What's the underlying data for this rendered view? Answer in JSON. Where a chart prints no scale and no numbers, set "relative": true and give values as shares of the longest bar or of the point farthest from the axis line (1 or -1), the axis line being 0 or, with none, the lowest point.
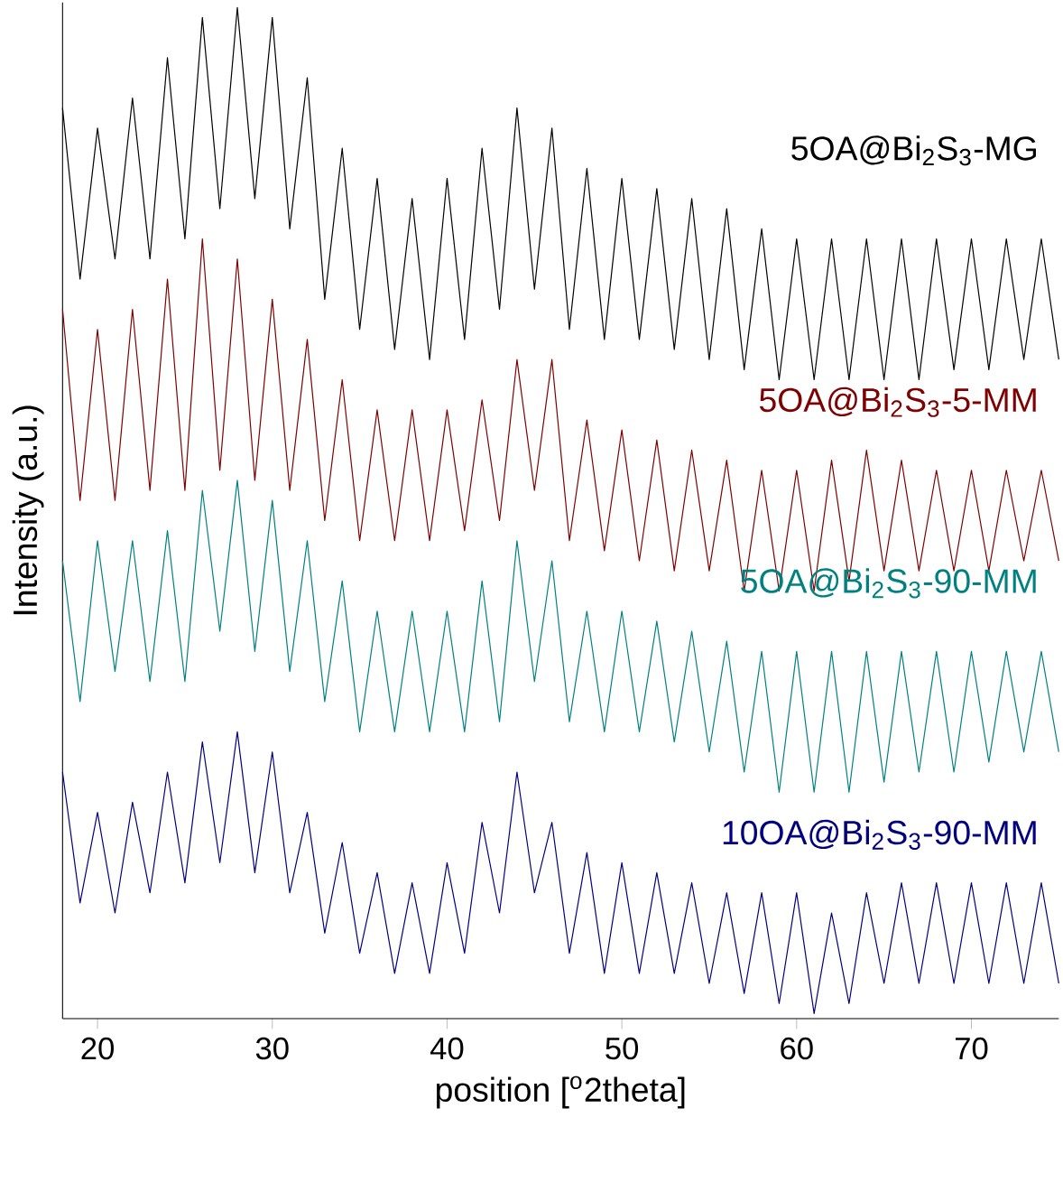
{
  "chart_data": {
    "type": "line",
    "relative": true,
    "xlabel": "position [$^{o}$2theta]",
    "ylabel": "Intensity (a.u.)",
    "xlim": [
      18,
      75
    ],
    "xticks": [
      20,
      30,
      40,
      50,
      60,
      70
    ],
    "marker": "none",
    "line_style": "solid",
    "x": [
      18,
      19,
      20,
      21,
      22,
      23,
      24,
      25,
      26,
      27,
      28,
      29,
      30,
      31,
      32,
      33,
      34,
      35,
      36,
      37,
      38,
      39,
      40,
      41,
      42,
      43,
      44,
      45,
      46,
      47,
      48,
      49,
      50,
      51,
      52,
      53,
      54,
      55,
      56,
      57,
      58,
      59,
      60,
      61,
      62,
      63,
      64,
      65,
      66,
      67,
      68,
      69,
      70,
      71,
      72,
      73,
      74,
      75
    ],
    "series": [
      {
        "name": "5OA@Bi$_{2}$S$_{3}$-MG",
        "color": "#000000",
        "values": [
          0.9,
          0.73,
          0.88,
          0.75,
          0.91,
          0.75,
          0.95,
          0.77,
          0.99,
          0.8,
          1.0,
          0.81,
          0.99,
          0.78,
          0.93,
          0.71,
          0.86,
          0.68,
          0.83,
          0.66,
          0.81,
          0.65,
          0.83,
          0.67,
          0.86,
          0.7,
          0.9,
          0.72,
          0.88,
          0.68,
          0.84,
          0.67,
          0.83,
          0.67,
          0.82,
          0.66,
          0.81,
          0.65,
          0.8,
          0.64,
          0.78,
          0.63,
          0.77,
          0.63,
          0.77,
          0.63,
          0.77,
          0.63,
          0.77,
          0.63,
          0.77,
          0.64,
          0.77,
          0.64,
          0.77,
          0.65,
          0.77,
          0.65
        ]
      },
      {
        "name": "5OA@Bi$_{2}$S$_{3}$-5-MM",
        "color": "#7f0000",
        "values": [
          0.7,
          0.51,
          0.68,
          0.51,
          0.7,
          0.52,
          0.73,
          0.52,
          0.77,
          0.54,
          0.75,
          0.53,
          0.71,
          0.52,
          0.67,
          0.49,
          0.63,
          0.47,
          0.6,
          0.47,
          0.6,
          0.47,
          0.6,
          0.48,
          0.61,
          0.49,
          0.65,
          0.52,
          0.65,
          0.47,
          0.59,
          0.46,
          0.58,
          0.45,
          0.57,
          0.44,
          0.56,
          0.44,
          0.55,
          0.42,
          0.54,
          0.42,
          0.54,
          0.42,
          0.55,
          0.43,
          0.56,
          0.44,
          0.55,
          0.44,
          0.54,
          0.44,
          0.54,
          0.44,
          0.54,
          0.45,
          0.54,
          0.45
        ]
      },
      {
        "name": "5OA@Bi$_{2}$S$_{3}$-90-MM",
        "color": "#008080",
        "values": [
          0.45,
          0.31,
          0.47,
          0.34,
          0.47,
          0.33,
          0.48,
          0.33,
          0.52,
          0.38,
          0.53,
          0.36,
          0.51,
          0.34,
          0.47,
          0.31,
          0.43,
          0.28,
          0.4,
          0.28,
          0.4,
          0.28,
          0.4,
          0.28,
          0.43,
          0.29,
          0.47,
          0.33,
          0.45,
          0.29,
          0.4,
          0.28,
          0.4,
          0.28,
          0.39,
          0.27,
          0.38,
          0.26,
          0.37,
          0.24,
          0.36,
          0.22,
          0.36,
          0.22,
          0.36,
          0.22,
          0.36,
          0.23,
          0.36,
          0.24,
          0.36,
          0.24,
          0.36,
          0.25,
          0.36,
          0.26,
          0.36,
          0.26
        ]
      },
      {
        "name": "10OA@Bi$_{2}$S$_{3}$-90-MM",
        "color": "#000080",
        "values": [
          0.24,
          0.11,
          0.2,
          0.1,
          0.21,
          0.12,
          0.24,
          0.13,
          0.27,
          0.15,
          0.28,
          0.14,
          0.26,
          0.12,
          0.2,
          0.08,
          0.17,
          0.06,
          0.14,
          0.04,
          0.13,
          0.04,
          0.15,
          0.06,
          0.19,
          0.1,
          0.24,
          0.12,
          0.19,
          0.06,
          0.16,
          0.04,
          0.15,
          0.04,
          0.14,
          0.04,
          0.13,
          0.03,
          0.12,
          0.02,
          0.12,
          0.01,
          0.12,
          0.0,
          0.1,
          0.01,
          0.12,
          0.03,
          0.13,
          0.03,
          0.13,
          0.03,
          0.13,
          0.03,
          0.13,
          0.03,
          0.13,
          0.03
        ]
      }
    ]
  }
}
